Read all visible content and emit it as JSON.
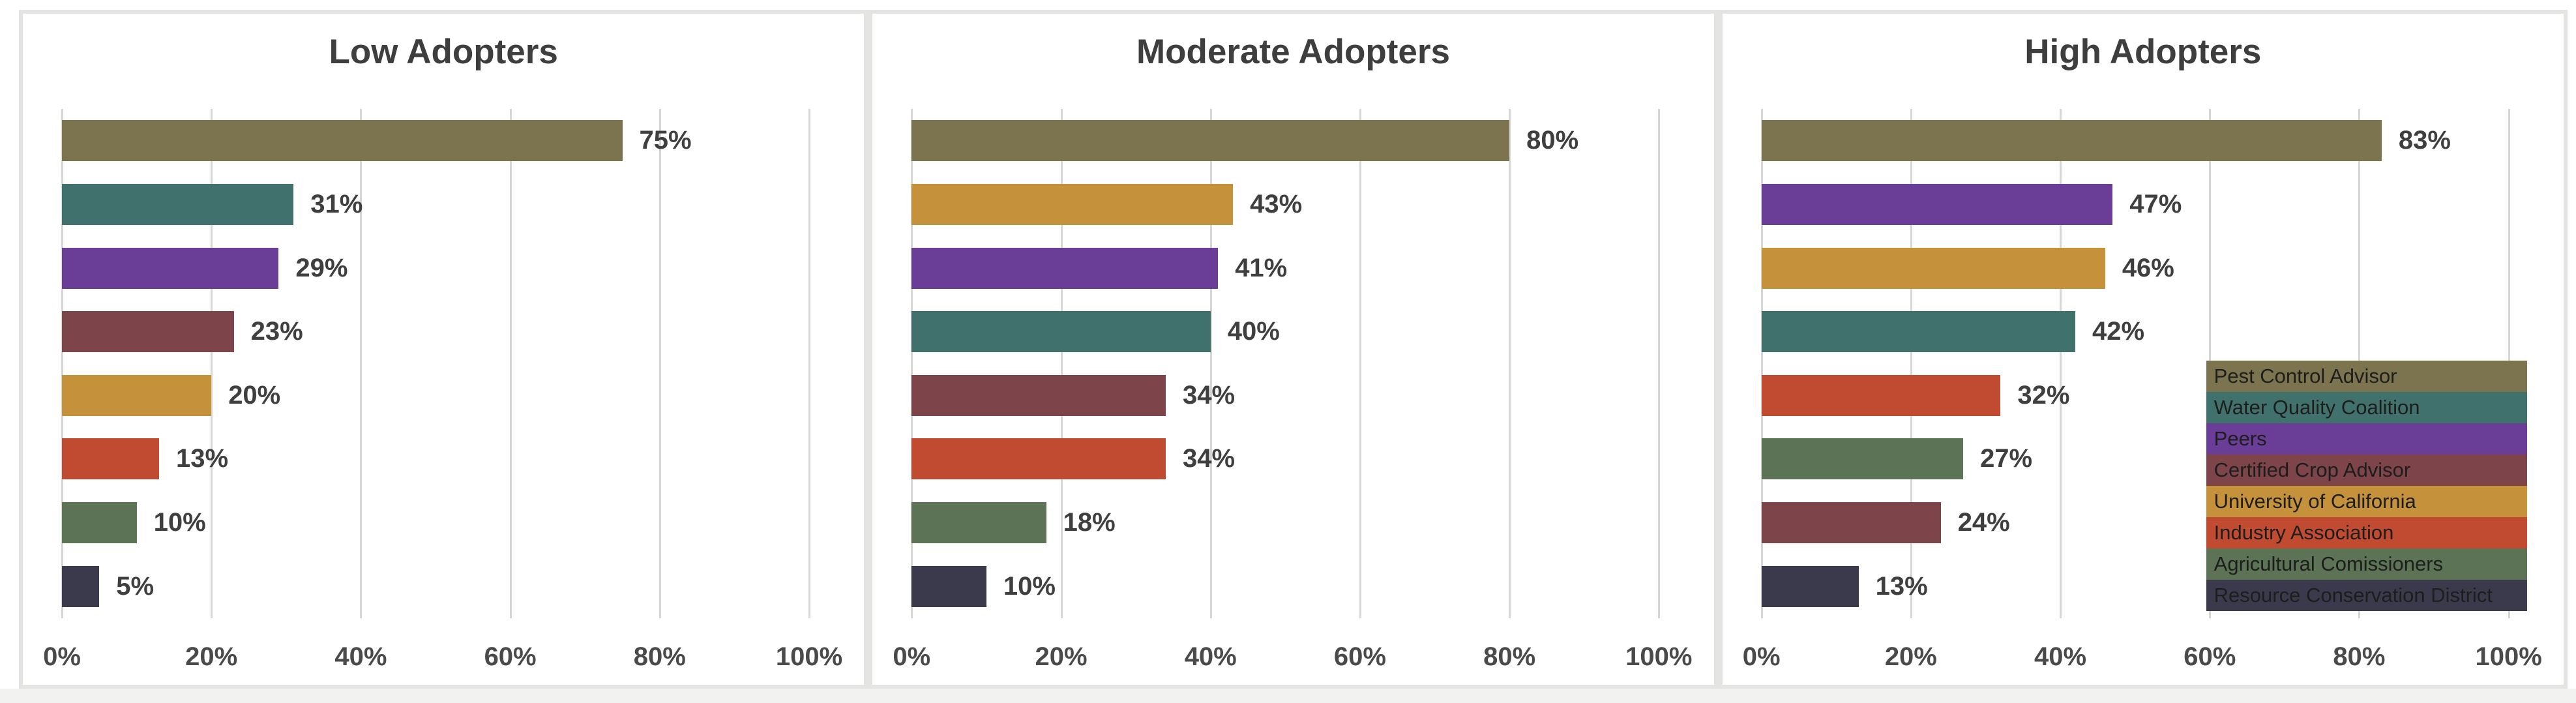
{
  "figure": {
    "kind": "three-panel horizontal bar chart",
    "panel_titles": [
      "Low Adopters",
      "Moderate Adopters",
      "High Adopters"
    ]
  },
  "palette": {
    "pest_control_advisor": "#7B744E",
    "water_quality_coalition": "#40716C",
    "peers": "#6A3D96",
    "certified_crop_advisor": "#7D444A",
    "university_of_california": "#C5913A",
    "industry_association": "#C04B30",
    "agricultural_comissioners": "#5D7355",
    "resource_conservation_district": "#3A3A4C"
  },
  "legend": {
    "position": "inside right of High Adopters panel",
    "items": [
      {
        "label": "Pest Control Advisor",
        "color_key": "pest_control_advisor"
      },
      {
        "label": "Water Quality Coalition",
        "color_key": "water_quality_coalition"
      },
      {
        "label": "Peers",
        "color_key": "peers"
      },
      {
        "label": "Certified Crop Advisor",
        "color_key": "certified_crop_advisor"
      },
      {
        "label": "University of California",
        "color_key": "university_of_california"
      },
      {
        "label": "Industry Association",
        "color_key": "industry_association"
      },
      {
        "label": "Agricultural Comissioners",
        "color_key": "agricultural_comissioners"
      },
      {
        "label": "Resource Conservation District",
        "color_key": "resource_conservation_district"
      }
    ]
  },
  "chart_data": [
    {
      "type": "bar",
      "orientation": "horizontal",
      "title": "Low Adopters",
      "xlim": [
        0,
        100
      ],
      "x_ticks": [
        "0%",
        "20%",
        "40%",
        "60%",
        "80%",
        "100%"
      ],
      "grid": true,
      "show_legend": false,
      "bars": [
        {
          "category": "Pest Control Advisor",
          "value": 75,
          "label": "75%",
          "color_key": "pest_control_advisor"
        },
        {
          "category": "Water Quality Coalition",
          "value": 31,
          "label": "31%",
          "color_key": "water_quality_coalition"
        },
        {
          "category": "Peers",
          "value": 29,
          "label": "29%",
          "color_key": "peers"
        },
        {
          "category": "Certified Crop Advisor",
          "value": 23,
          "label": "23%",
          "color_key": "certified_crop_advisor"
        },
        {
          "category": "University of California",
          "value": 20,
          "label": "20%",
          "color_key": "university_of_california"
        },
        {
          "category": "Industry Association",
          "value": 13,
          "label": "13%",
          "color_key": "industry_association"
        },
        {
          "category": "Agricultural Comissioners",
          "value": 10,
          "label": "10%",
          "color_key": "agricultural_comissioners"
        },
        {
          "category": "Resource Conservation District",
          "value": 5,
          "label": "5%",
          "color_key": "resource_conservation_district"
        }
      ]
    },
    {
      "type": "bar",
      "orientation": "horizontal",
      "title": "Moderate Adopters",
      "xlim": [
        0,
        100
      ],
      "x_ticks": [
        "0%",
        "20%",
        "40%",
        "60%",
        "80%",
        "100%"
      ],
      "grid": true,
      "show_legend": false,
      "bars": [
        {
          "category": "Pest Control Advisor",
          "value": 80,
          "label": "80%",
          "color_key": "pest_control_advisor"
        },
        {
          "category": "University of California",
          "value": 43,
          "label": "43%",
          "color_key": "university_of_california"
        },
        {
          "category": "Peers",
          "value": 41,
          "label": "41%",
          "color_key": "peers"
        },
        {
          "category": "Water Quality Coalition",
          "value": 40,
          "label": "40%",
          "color_key": "water_quality_coalition"
        },
        {
          "category": "Certified Crop Advisor",
          "value": 34,
          "label": "34%",
          "color_key": "certified_crop_advisor"
        },
        {
          "category": "Industry Association",
          "value": 34,
          "label": "34%",
          "color_key": "industry_association"
        },
        {
          "category": "Agricultural Comissioners",
          "value": 18,
          "label": "18%",
          "color_key": "agricultural_comissioners"
        },
        {
          "category": "Resource Conservation District",
          "value": 10,
          "label": "10%",
          "color_key": "resource_conservation_district"
        }
      ]
    },
    {
      "type": "bar",
      "orientation": "horizontal",
      "title": "High Adopters",
      "xlim": [
        0,
        100
      ],
      "x_ticks": [
        "0%",
        "20%",
        "40%",
        "60%",
        "80%",
        "100%"
      ],
      "grid": true,
      "show_legend": true,
      "bars": [
        {
          "category": "Pest Control Advisor",
          "value": 83,
          "label": "83%",
          "color_key": "pest_control_advisor"
        },
        {
          "category": "Peers",
          "value": 47,
          "label": "47%",
          "color_key": "peers"
        },
        {
          "category": "University of California",
          "value": 46,
          "label": "46%",
          "color_key": "university_of_california"
        },
        {
          "category": "Water Quality Coalition",
          "value": 42,
          "label": "42%",
          "color_key": "water_quality_coalition"
        },
        {
          "category": "Industry Association",
          "value": 32,
          "label": "32%",
          "color_key": "industry_association"
        },
        {
          "category": "Agricultural Comissioners",
          "value": 27,
          "label": "27%",
          "color_key": "agricultural_comissioners"
        },
        {
          "category": "Certified Crop Advisor",
          "value": 24,
          "label": "24%",
          "color_key": "certified_crop_advisor"
        },
        {
          "category": "Resource Conservation District",
          "value": 13,
          "label": "13%",
          "color_key": "resource_conservation_district"
        }
      ]
    }
  ]
}
